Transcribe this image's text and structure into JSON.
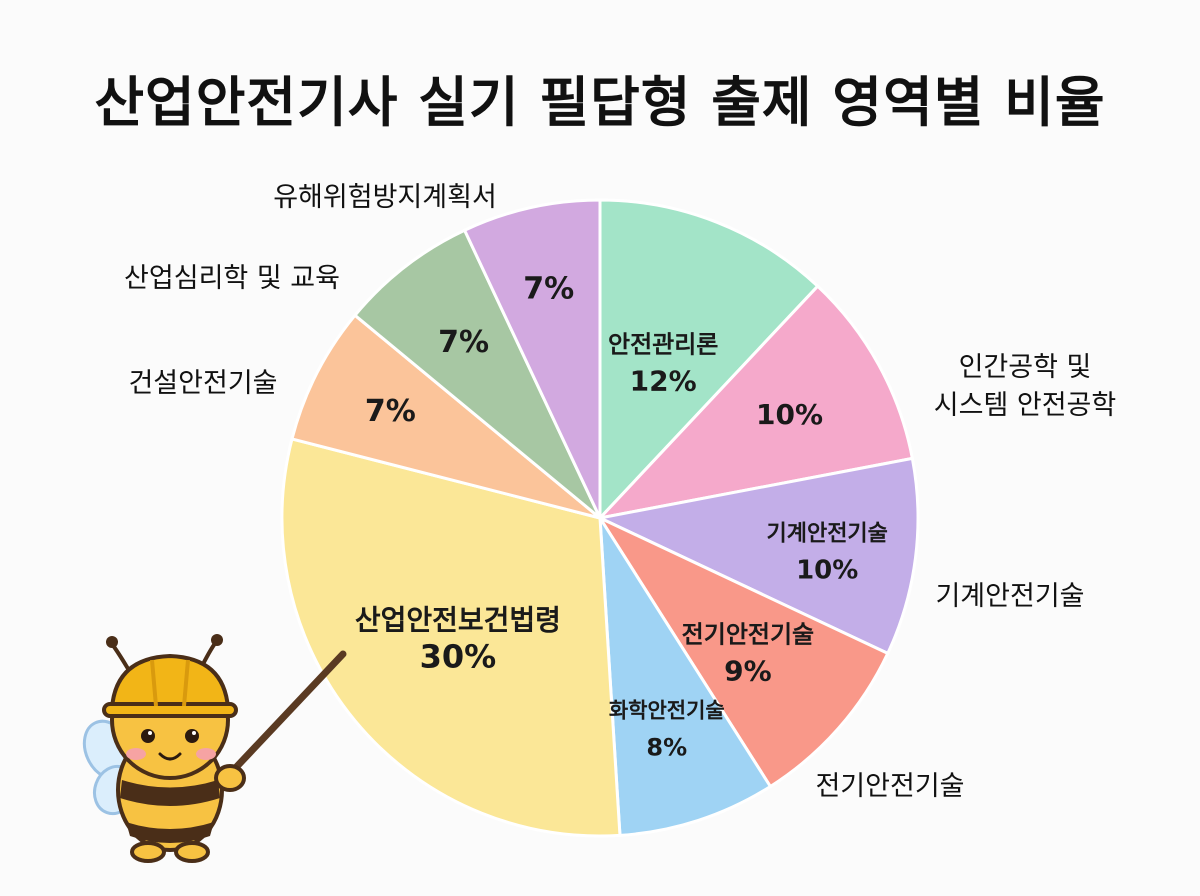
{
  "title": "산업안전기사 실기 필답형 출제 영역별 비율",
  "chart_data": {
    "type": "pie",
    "title": "산업안전기사 실기 필답형 출제 영역별 비율",
    "unit": "%",
    "slices": [
      {
        "inner_label": "안전관리론",
        "value": 12,
        "value_label": "12%",
        "outer_label": [],
        "color": "#a3e4c8"
      },
      {
        "inner_label": "",
        "value": 10,
        "value_label": "10%",
        "outer_label": [
          "인간공학 및",
          "시스템 안전공학"
        ],
        "color": "#f5a9cb"
      },
      {
        "inner_label": "기계안전기술",
        "value": 10,
        "value_label": "10%",
        "outer_label": [
          "기계안전기술"
        ],
        "color": "#c3aee8"
      },
      {
        "inner_label": "전기안전기술",
        "value": 9,
        "value_label": "9%",
        "outer_label": [
          "전기안전기술"
        ],
        "color": "#f99889"
      },
      {
        "inner_label": "화학안전기술",
        "value": 8,
        "value_label": "8%",
        "outer_label": [],
        "color": "#9fd3f4"
      },
      {
        "inner_label": "산업안전보건법령",
        "value": 30,
        "value_label": "30%",
        "outer_label": [],
        "color": "#fbe797"
      },
      {
        "inner_label": "",
        "value": 7,
        "value_label": "7%",
        "outer_label": [
          "건설안전기술"
        ],
        "color": "#fbc49a"
      },
      {
        "inner_label": "",
        "value": 7,
        "value_label": "7%",
        "outer_label": [
          "산업심리학 및 교육"
        ],
        "color": "#a7c7a3"
      },
      {
        "inner_label": "",
        "value": 7,
        "value_label": "7%",
        "outer_label": [
          "유해위험방지계획서"
        ],
        "color": "#d2a9e0"
      }
    ]
  },
  "mascot": {
    "name": "bee-mascot",
    "body_color": "#f7c242",
    "helmet_color": "#f2b517",
    "stripe_color": "#4a2e18"
  }
}
